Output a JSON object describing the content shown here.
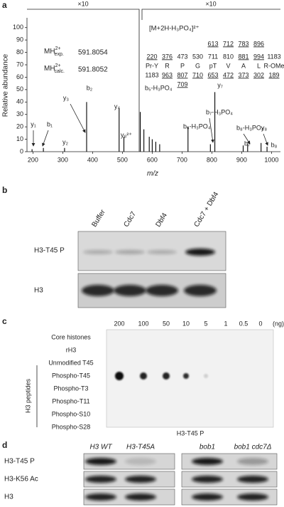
{
  "panel_labels": [
    "a",
    "b",
    "c",
    "d"
  ],
  "chart_data": {
    "type": "bar",
    "xlabel": "m/z",
    "ylabel": "Relative abundance",
    "zoom_labels": [
      "×10",
      "×10"
    ],
    "x": [
      197,
      235,
      306,
      380,
      489,
      505,
      560,
      572,
      590,
      600,
      612,
      625,
      720,
      795,
      810,
      905,
      920,
      965,
      985
    ],
    "values": [
      2,
      3,
      3,
      40,
      35,
      12,
      32,
      18,
      12,
      10,
      8,
      6,
      20,
      6,
      48,
      5,
      6,
      7,
      4
    ],
    "color": "#000000",
    "xlim": [
      180,
      1030
    ],
    "ylim": [
      0,
      105
    ],
    "xticks": [
      200,
      300,
      400,
      500,
      600,
      700,
      800,
      900,
      1000
    ],
    "yticks": [
      0,
      10,
      20,
      30,
      40,
      50,
      60,
      70,
      80,
      90,
      100
    ],
    "peak_labels": [
      "y₁",
      "b₁",
      "y₂",
      "y₃",
      "b₂",
      "y₄",
      "y₈²⁺",
      "b₅-H₃PO₄",
      "b₆-H₃PO₄",
      "b₇-H₃PO₄",
      "y₇",
      "b₈-H₃PO₄",
      "y₈",
      "b₇",
      "b₈"
    ],
    "mass_box": [
      {
        "prefix": "MH",
        "charge": "2+",
        "kind": "exp.",
        "value": 591.8054
      },
      {
        "prefix": "MH",
        "charge": "2+",
        "kind": "calc.",
        "value": 591.8052
      }
    ],
    "precursor": "[M+2H-H₃PO₄]²⁺",
    "fragment_table": {
      "top": [
        613,
        712,
        783,
        896
      ],
      "b_ions": [
        220,
        376,
        473,
        530,
        711,
        810,
        881,
        994,
        1183
      ],
      "b_ions_underlined": [
        true,
        true,
        false,
        false,
        false,
        false,
        true,
        true,
        false
      ],
      "residues": [
        "Pr-Y",
        "R",
        "P",
        "G",
        "pT",
        "V",
        "A",
        "L",
        "R-OMe"
      ],
      "y_ions": [
        1183,
        963,
        807,
        710,
        653,
        472,
        373,
        302,
        189
      ],
      "y_ions_underlined": [
        false,
        true,
        true,
        true,
        true,
        true,
        true,
        true,
        true
      ],
      "y_alt": [
        709
      ]
    }
  },
  "panel_b": {
    "columns": [
      "Buffer",
      "Cdc7",
      "Dbf4",
      "Cdc7 + Dbf4"
    ],
    "rows": [
      "H3-T45 P",
      "H3"
    ]
  },
  "panel_c": {
    "columns": [
      200,
      100,
      50,
      10,
      5,
      1,
      0.5,
      0
    ],
    "unit": "(ng)",
    "rows": [
      "Core histones",
      "rH3",
      "Unmodified T45",
      "Phospho-T45",
      "Phospho-T3",
      "Phospho-T11",
      "Phospho-S10",
      "Phospho-S28"
    ],
    "group_label": "H3 peptides",
    "caption": "H3-T45 P"
  },
  "panel_d": {
    "columns": [
      "H3 WT",
      "H3-T45A",
      "bob1",
      "bob1 cdc7Δ"
    ],
    "rows": [
      "H3-T45 P",
      "H3-K56 Ac",
      "H3"
    ]
  }
}
